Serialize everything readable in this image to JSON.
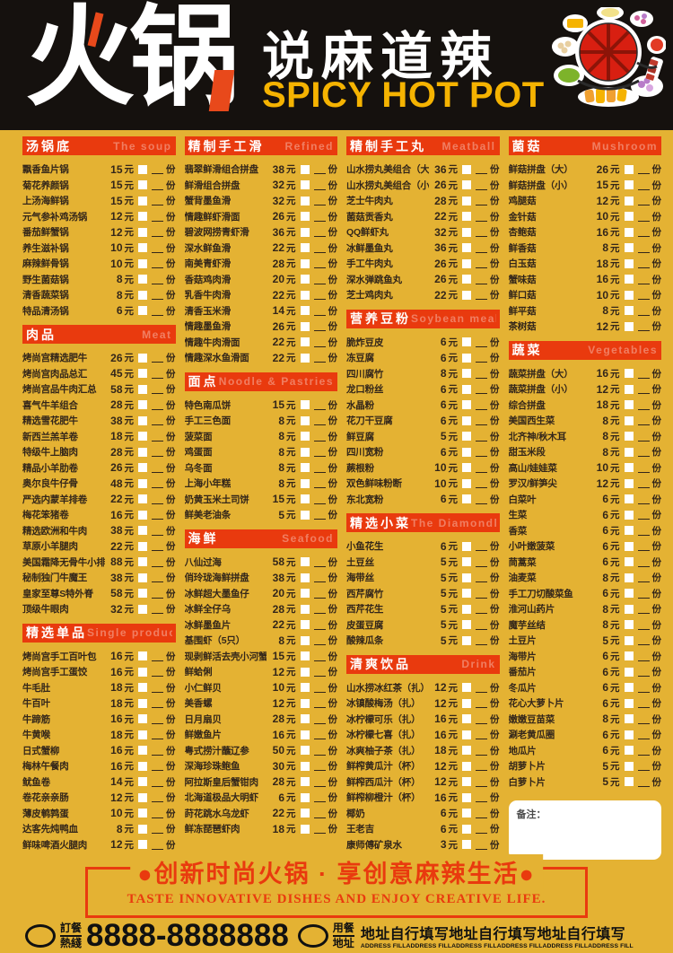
{
  "colors": {
    "background": "#e4b233",
    "section_red": "#e93a0e",
    "header_black": "#15110e",
    "logo_gold": "#f5b301",
    "item_text": "#33261a"
  },
  "header": {
    "title_zh": "火锅",
    "subtitle_zh": "说麻道辣",
    "subtitle_en": "SPICY HOT POT",
    "illustration": "hotpot-with-side-dishes"
  },
  "row_labels": {
    "yuan": "元",
    "qty": "份"
  },
  "notes_label": "备注：",
  "menu": {
    "columns": [
      {
        "sections": [
          {
            "title_zh": "汤锅底",
            "title_en": "The soup",
            "items": [
              {
                "name": "飘香鱼片锅",
                "price": "15"
              },
              {
                "name": "菊花养颜锅",
                "price": "15"
              },
              {
                "name": "上汤海鲜锅",
                "price": "15"
              },
              {
                "name": "元气参补鸡汤锅",
                "price": "12"
              },
              {
                "name": "番茄鲜蟹锅",
                "price": "12"
              },
              {
                "name": "养生滋补锅",
                "price": "10"
              },
              {
                "name": "麻辣鲜骨锅",
                "price": "10"
              },
              {
                "name": "野生菌菇锅",
                "price": "8"
              },
              {
                "name": "清香蔬菜锅",
                "price": "8"
              },
              {
                "name": "特品清汤锅",
                "price": "6"
              }
            ]
          },
          {
            "title_zh": "肉品",
            "title_en": "Meat",
            "items": [
              {
                "name": "烤尚宫精选肥牛",
                "price": "26"
              },
              {
                "name": "烤尚宫肉品总汇",
                "price": "45"
              },
              {
                "name": "烤尚宫品牛肉汇总",
                "price": "58"
              },
              {
                "name": "喜气牛羊组合",
                "price": "28"
              },
              {
                "name": "精选雪花肥牛",
                "price": "38"
              },
              {
                "name": "新西兰羔羊卷",
                "price": "18"
              },
              {
                "name": "特级牛上脑肉",
                "price": "28"
              },
              {
                "name": "精品小羊肋卷",
                "price": "26"
              },
              {
                "name": "奥尔良牛仔骨",
                "price": "48"
              },
              {
                "name": "严选内蒙羊排卷",
                "price": "22"
              },
              {
                "name": "梅花笨猪卷",
                "price": "16"
              },
              {
                "name": "精选欧洲和牛肉",
                "price": "38"
              },
              {
                "name": "草原小羊腿肉",
                "price": "22"
              },
              {
                "name": "美国霜降无骨牛小排",
                "price": "88"
              },
              {
                "name": "秘制独门牛魔王",
                "price": "38"
              },
              {
                "name": "皇家至尊S特外脊",
                "price": "58"
              },
              {
                "name": "顶级牛眼肉",
                "price": "32"
              }
            ]
          },
          {
            "title_zh": "精选单品",
            "title_en": "Single product",
            "items": [
              {
                "name": "烤尚宫手工百叶包",
                "price": "16"
              },
              {
                "name": "烤尚宫手工蛋饺",
                "price": "16"
              },
              {
                "name": "牛毛肚",
                "price": "18"
              },
              {
                "name": "牛百叶",
                "price": "18"
              },
              {
                "name": "牛蹄筋",
                "price": "16"
              },
              {
                "name": "牛黄喉",
                "price": "18"
              },
              {
                "name": "日式蟹柳",
                "price": "16"
              },
              {
                "name": "梅林午餐肉",
                "price": "16"
              },
              {
                "name": "鱿鱼卷",
                "price": "14"
              },
              {
                "name": "卷花亲亲肠",
                "price": "12"
              },
              {
                "name": "薄皮鹌鹑蛋",
                "price": "10"
              },
              {
                "name": "达客先炖鸭血",
                "price": "8"
              },
              {
                "name": "鲜味啤酒火腿肉",
                "price": "12"
              }
            ]
          }
        ]
      },
      {
        "sections": [
          {
            "title_zh": "精制手工滑",
            "title_en": "Refined",
            "items": [
              {
                "name": "翡翠鲜滑组合拼盘",
                "price": "38"
              },
              {
                "name": "鲜滑组合拼盘",
                "price": "32"
              },
              {
                "name": "蟹背墨鱼滑",
                "price": "32"
              },
              {
                "name": "情趣鲜虾滑面",
                "price": "26"
              },
              {
                "name": "碧波网捞青虾滑",
                "price": "36"
              },
              {
                "name": "深水鲜鱼滑",
                "price": "22"
              },
              {
                "name": "南美青虾滑",
                "price": "28"
              },
              {
                "name": "香菇鸡肉滑",
                "price": "20"
              },
              {
                "name": "乳香牛肉滑",
                "price": "22"
              },
              {
                "name": "清香玉米滑",
                "price": "14"
              },
              {
                "name": "情趣墨鱼滑",
                "price": "26"
              },
              {
                "name": "情趣牛肉滑面",
                "price": "22"
              },
              {
                "name": "情趣深水鱼滑面",
                "price": "22"
              }
            ]
          },
          {
            "title_zh": "面点",
            "title_en": "Noodle & Pastries",
            "items": [
              {
                "name": "特色南瓜饼",
                "price": "15"
              },
              {
                "name": "手工三色面",
                "price": "8"
              },
              {
                "name": "菠菜面",
                "price": "8"
              },
              {
                "name": "鸡蛋面",
                "price": "8"
              },
              {
                "name": "乌冬面",
                "price": "8"
              },
              {
                "name": "上海小年糕",
                "price": "8"
              },
              {
                "name": "奶黄玉米土司饼",
                "price": "15"
              },
              {
                "name": "鲜美老油条",
                "price": "5"
              }
            ]
          },
          {
            "title_zh": "海鲜",
            "title_en": "Seafood",
            "items": [
              {
                "name": "八仙过海",
                "price": "58"
              },
              {
                "name": "俏玲珑海鲜拼盘",
                "price": "38"
              },
              {
                "name": "冰鲜超大墨鱼仔",
                "price": "20"
              },
              {
                "name": "冰鲜全仔乌",
                "price": "28"
              },
              {
                "name": "冰鲜墨鱼片",
                "price": "22"
              },
              {
                "name": "基围虾（5只）",
                "price": "8"
              },
              {
                "name": "现剥鲜活去壳小河蟹",
                "price": "15"
              },
              {
                "name": "鲜蛤俐",
                "price": "12"
              },
              {
                "name": "小仁鲜贝",
                "price": "10"
              },
              {
                "name": "美香螺",
                "price": "12"
              },
              {
                "name": "日月扇贝",
                "price": "28"
              },
              {
                "name": "鲜嫩鱼片",
                "price": "16"
              },
              {
                "name": "粤式捞汁蘸辽参",
                "price": "50"
              },
              {
                "name": "深海珍珠鲍鱼",
                "price": "30"
              },
              {
                "name": "阿拉斯皇后蟹钳肉",
                "price": "28"
              },
              {
                "name": "北海道极品大明虾",
                "price": "6"
              },
              {
                "name": "莳花跳水乌龙虾",
                "price": "22"
              },
              {
                "name": "鲜冻琵琶虾肉",
                "price": "18"
              }
            ]
          }
        ]
      },
      {
        "sections": [
          {
            "title_zh": "精制手工丸",
            "title_en": "Meatball",
            "items": [
              {
                "name": "山水捞丸美组合（大）",
                "price": "36"
              },
              {
                "name": "山水捞丸美组合（小）",
                "price": "26"
              },
              {
                "name": "芝士牛肉丸",
                "price": "28"
              },
              {
                "name": "菌菇贡香丸",
                "price": "22"
              },
              {
                "name": "QQ鲜虾丸",
                "price": "32"
              },
              {
                "name": "冰鲜墨鱼丸",
                "price": "36"
              },
              {
                "name": "手工牛肉丸",
                "price": "26"
              },
              {
                "name": "深水弹跳鱼丸",
                "price": "26"
              },
              {
                "name": "芝士鸡肉丸",
                "price": "22"
              }
            ]
          },
          {
            "title_zh": "营养豆粉",
            "title_en": "Soybean meal",
            "items": [
              {
                "name": "脆炸豆皮",
                "price": "6"
              },
              {
                "name": "冻豆腐",
                "price": "6"
              },
              {
                "name": "四川腐竹",
                "price": "8"
              },
              {
                "name": "龙口粉丝",
                "price": "6"
              },
              {
                "name": "水晶粉",
                "price": "6"
              },
              {
                "name": "花刀干豆腐",
                "price": "6"
              },
              {
                "name": "鲜豆腐",
                "price": "5"
              },
              {
                "name": "四川宽粉",
                "price": "6"
              },
              {
                "name": "蕨根粉",
                "price": "10"
              },
              {
                "name": "双色鲜味粉断",
                "price": "10"
              },
              {
                "name": "东北宽粉",
                "price": "6"
              }
            ]
          },
          {
            "title_zh": "精选小菜",
            "title_en": "The Diamondback",
            "items": [
              {
                "name": "小鱼花生",
                "price": "6"
              },
              {
                "name": "土豆丝",
                "price": "5"
              },
              {
                "name": "海带丝",
                "price": "5"
              },
              {
                "name": "西芹腐竹",
                "price": "5"
              },
              {
                "name": "西芹花生",
                "price": "5"
              },
              {
                "name": "皮蛋豆腐",
                "price": "5"
              },
              {
                "name": "酸辣瓜条",
                "price": "5"
              }
            ]
          },
          {
            "title_zh": "清爽饮品",
            "title_en": "Drink",
            "items": [
              {
                "name": "山水捞冰红茶（扎）",
                "price": "12"
              },
              {
                "name": "冰镇酸梅汤（扎）",
                "price": "12"
              },
              {
                "name": "冰柠檬可乐（扎）",
                "price": "16"
              },
              {
                "name": "冰柠檬七喜（扎）",
                "price": "16"
              },
              {
                "name": "冰爽柚子茶（扎）",
                "price": "18"
              },
              {
                "name": "鲜榨黄瓜汁（杯）",
                "price": "12"
              },
              {
                "name": "鲜榨西瓜汁（杯）",
                "price": "12"
              },
              {
                "name": "鲜榨柳橙汁（杯）",
                "price": "16"
              },
              {
                "name": "椰奶",
                "price": "6"
              },
              {
                "name": "王老吉",
                "price": "6"
              },
              {
                "name": "康师傅矿泉水",
                "price": "3"
              }
            ]
          }
        ]
      },
      {
        "sections": [
          {
            "title_zh": "菌菇",
            "title_en": "Mushroom",
            "items": [
              {
                "name": "鲜菇拼盘（大）",
                "price": "26"
              },
              {
                "name": "鲜菇拼盘（小）",
                "price": "15"
              },
              {
                "name": "鸡腿菇",
                "price": "12"
              },
              {
                "name": "金针菇",
                "price": "10"
              },
              {
                "name": "杏鲍菇",
                "price": "16"
              },
              {
                "name": "鲜香菇",
                "price": "8"
              },
              {
                "name": "白玉菇",
                "price": "18"
              },
              {
                "name": "蟹味菇",
                "price": "16"
              },
              {
                "name": "鲜口菇",
                "price": "10"
              },
              {
                "name": "鲜平菇",
                "price": "8"
              },
              {
                "name": "茶树菇",
                "price": "12"
              }
            ]
          },
          {
            "title_zh": "蔬菜",
            "title_en": "Vegetables",
            "items": [
              {
                "name": "蔬菜拼盘（大）",
                "price": "16"
              },
              {
                "name": "蔬菜拼盘（小）",
                "price": "12"
              },
              {
                "name": "综合拼盘",
                "price": "18"
              },
              {
                "name": "美国西生菜",
                "price": "8"
              },
              {
                "name": "北齐神/秋木耳",
                "price": "8"
              },
              {
                "name": "甜玉米段",
                "price": "8"
              },
              {
                "name": "高山/娃娃菜",
                "price": "10"
              },
              {
                "name": "罗汉/鲜笋尖",
                "price": "12"
              },
              {
                "name": "白菜叶",
                "price": "6"
              },
              {
                "name": "生菜",
                "price": "6"
              },
              {
                "name": "香菜",
                "price": "6"
              },
              {
                "name": "小叶嫩菠菜",
                "price": "6"
              },
              {
                "name": "茼蒿菜",
                "price": "6"
              },
              {
                "name": "油麦菜",
                "price": "8"
              },
              {
                "name": "手工刀切酸菜鱼",
                "price": "6"
              },
              {
                "name": "淮河山药片",
                "price": "8"
              },
              {
                "name": "魔芋丝结",
                "price": "8"
              },
              {
                "name": "土豆片",
                "price": "5"
              },
              {
                "name": "海带片",
                "price": "6"
              },
              {
                "name": "番茄片",
                "price": "6"
              },
              {
                "name": "冬瓜片",
                "price": "6"
              },
              {
                "name": "花心大萝卜片",
                "price": "6"
              },
              {
                "name": "嫩嫩豆苗菜",
                "price": "8"
              },
              {
                "name": "涮老黄瓜圈",
                "price": "6"
              },
              {
                "name": "地瓜片",
                "price": "6"
              },
              {
                "name": "胡萝卜片",
                "price": "5"
              },
              {
                "name": "白萝卜片",
                "price": "5"
              }
            ]
          }
        ]
      }
    ]
  },
  "footer": {
    "slogan_zh": "●创新时尚火锅 · 享创意麻辣生活●",
    "slogan_en": "TASTE INNOVATIVE DISHES AND ENJOY CREATIVE LIFE.",
    "hotline_label_top": "訂餐",
    "hotline_label_bottom": "熱綫",
    "phone": "8888-8888888",
    "address_label_top": "用餐",
    "address_label_bottom": "地址",
    "address_zh": "地址自行填写地址自行填写地址自行填写",
    "address_en": "ADDRESS FILLADDRESS FILLADDRESS FILLADDRESS FILLADDRESS FILLADDRESS FILL"
  }
}
